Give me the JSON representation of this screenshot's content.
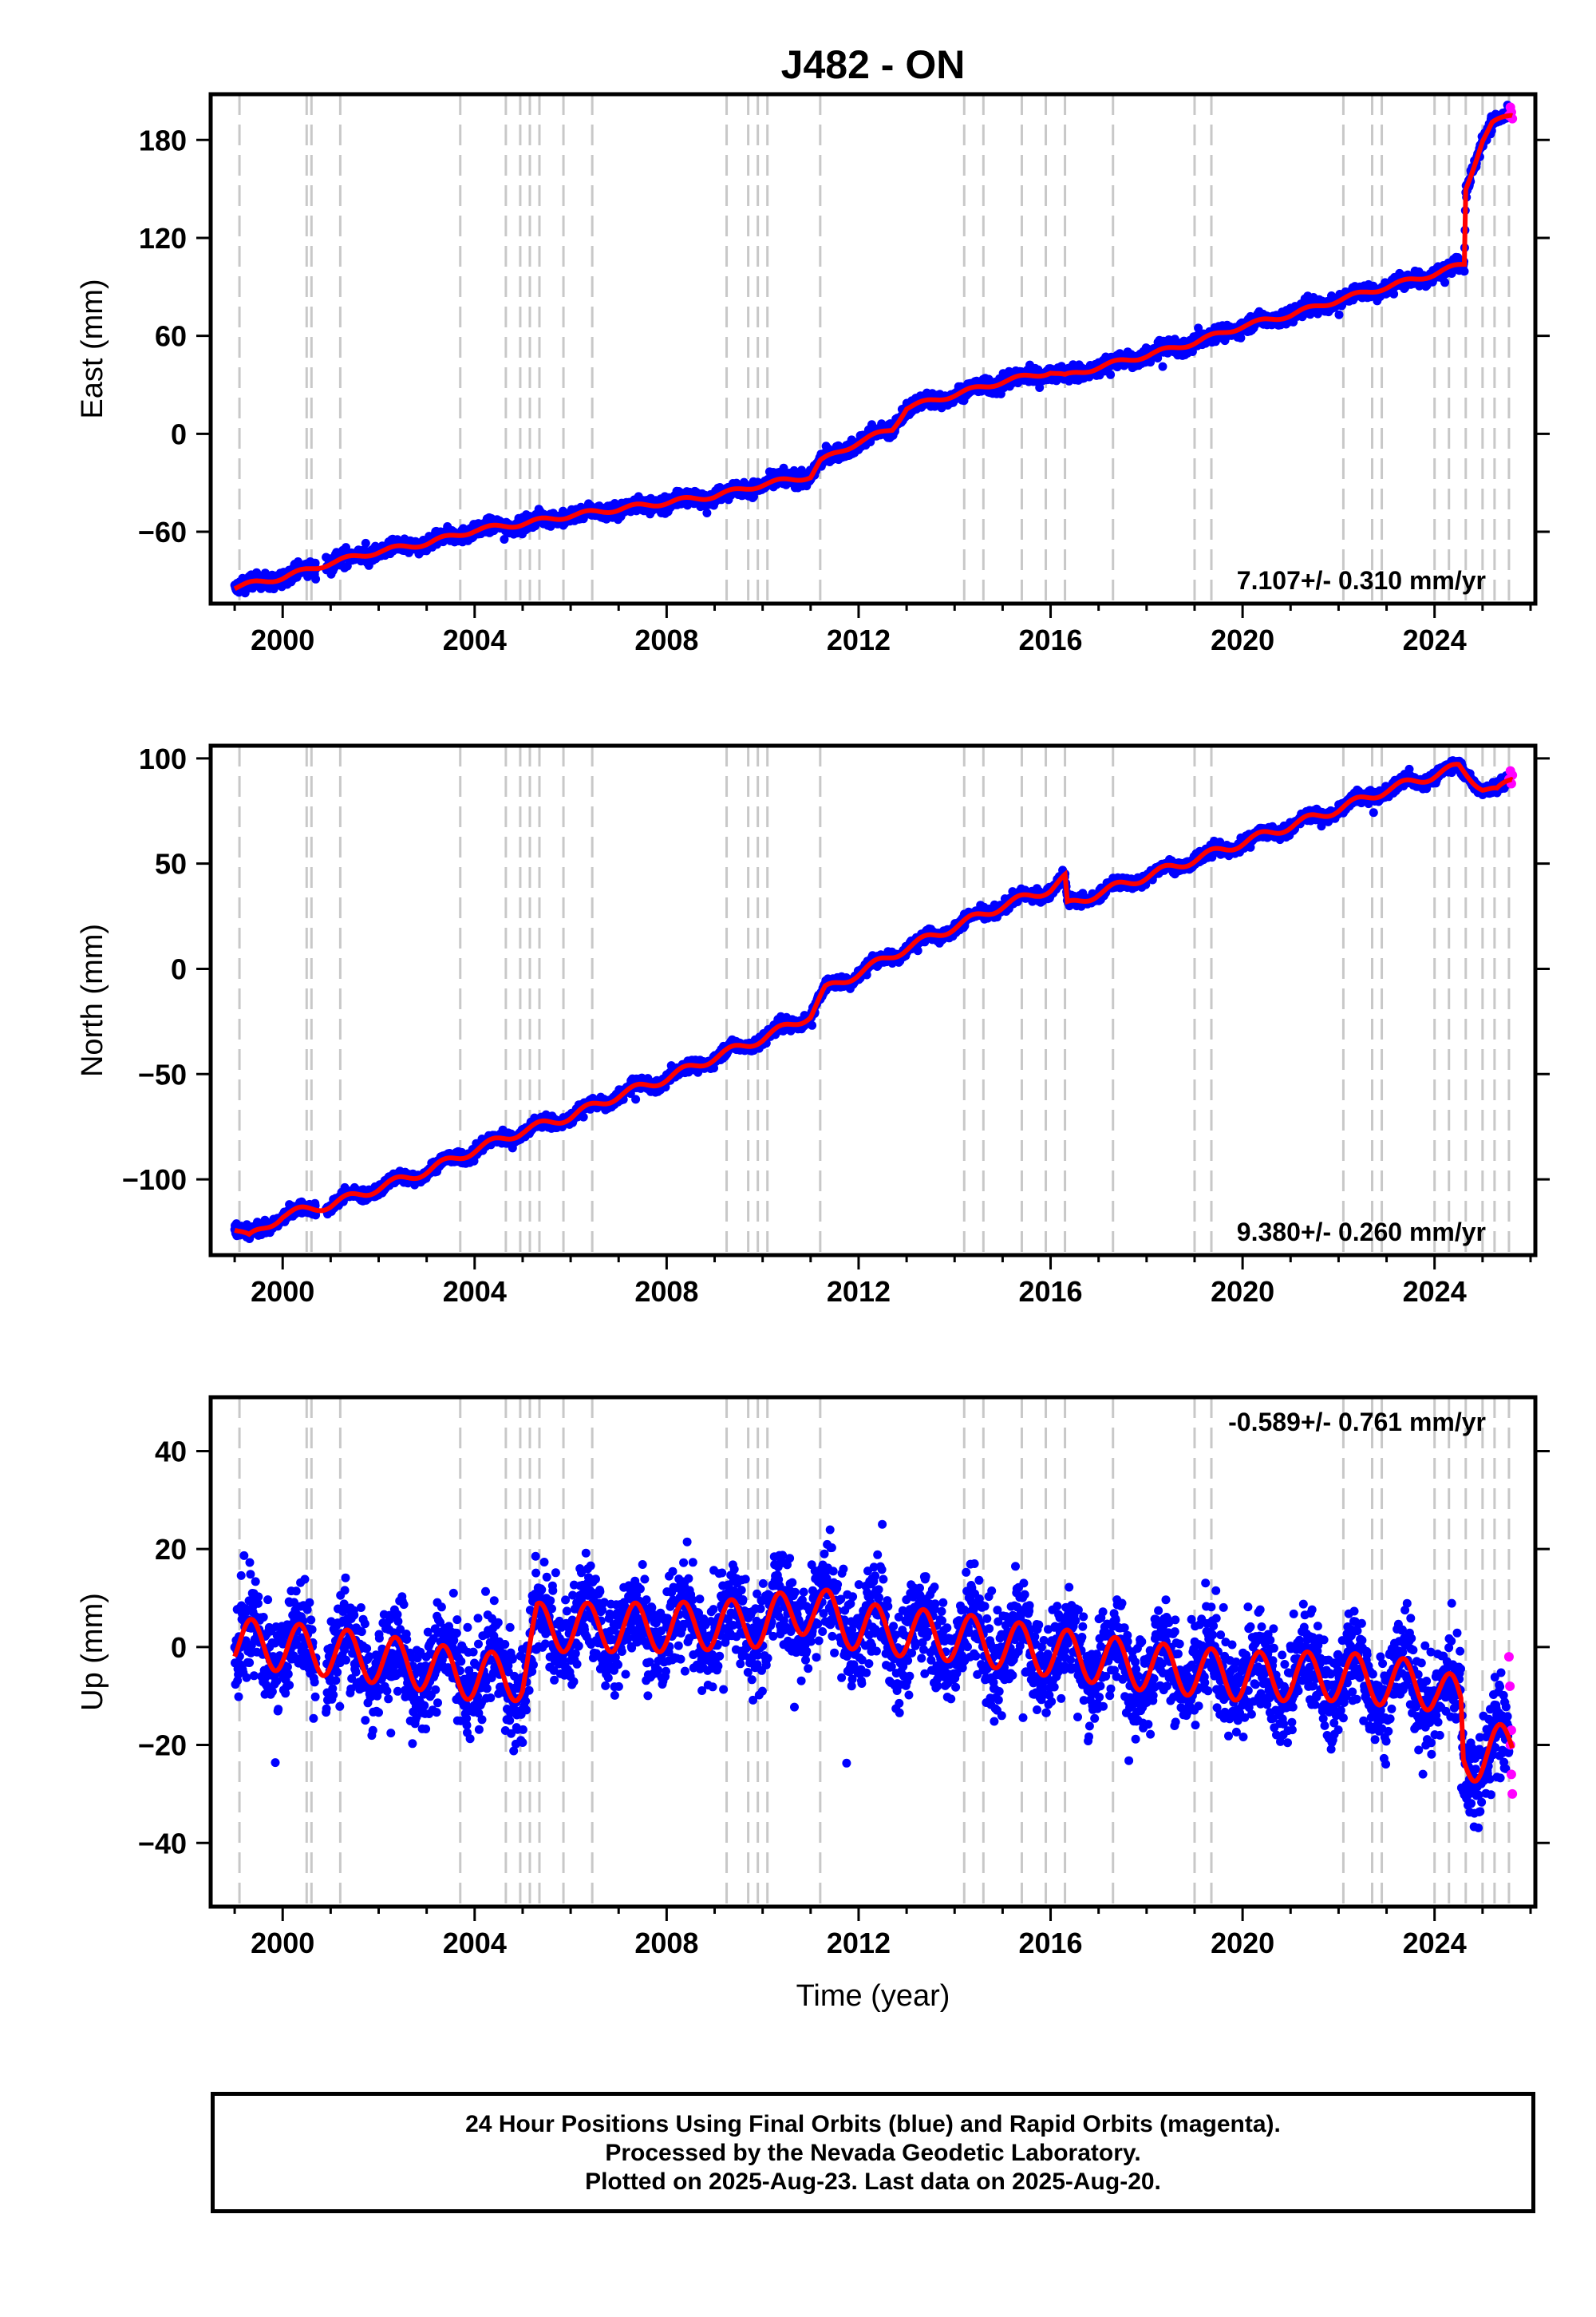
{
  "title": "J482 - ON",
  "colors": {
    "final_orbits": "#0000ff",
    "rapid_orbits": "#ff00ff",
    "model": "#ff0000",
    "equipment_change_lines": "#c8c8c8",
    "frame": "#000000"
  },
  "footer": {
    "line1": "24 Hour Positions Using Final Orbits (blue) and Rapid Orbits (magenta).",
    "line2": "Processed by the Nevada Geodetic Laboratory.",
    "line3": "Plotted on 2025-Aug-23. Last data on 2025-Aug-20."
  },
  "chart_data": [
    {
      "type": "scatter",
      "ylabel": "East (mm)",
      "xlabel": "",
      "xlim": [
        1998.5,
        2026.1
      ],
      "ylim": [
        -104,
        208
      ],
      "yticks": [
        -60,
        0,
        60,
        120,
        180
      ],
      "xticks": [
        2000,
        2004,
        2008,
        2012,
        2016,
        2020,
        2024
      ],
      "grid": false,
      "rate_label": "7.107+/- 0.310 mm/yr",
      "rate_position": "bottom-right",
      "trend_points": [
        [
          1999.0,
          -94
        ],
        [
          2000.0,
          -88
        ],
        [
          2001.0,
          -79
        ],
        [
          2002.0,
          -72
        ],
        [
          2003.0,
          -67
        ],
        [
          2004.0,
          -59
        ],
        [
          2005.0,
          -55
        ],
        [
          2006.0,
          -50
        ],
        [
          2007.0,
          -46
        ],
        [
          2008.0,
          -42
        ],
        [
          2009.0,
          -38
        ],
        [
          2010.0,
          -31
        ],
        [
          2011.0,
          -26
        ],
        [
          2011.2,
          -17
        ],
        [
          2012.0,
          -5
        ],
        [
          2012.7,
          3
        ],
        [
          2013.0,
          16
        ],
        [
          2014.0,
          24
        ],
        [
          2015.0,
          32
        ],
        [
          2016.0,
          38
        ],
        [
          2016.3,
          35
        ],
        [
          2017.0,
          41
        ],
        [
          2018.0,
          48
        ],
        [
          2019.0,
          56
        ],
        [
          2020.0,
          66
        ],
        [
          2021.0,
          73
        ],
        [
          2022.0,
          82
        ],
        [
          2023.0,
          90
        ],
        [
          2024.0,
          98
        ],
        [
          2024.62,
          104
        ],
        [
          2024.65,
          150
        ],
        [
          2025.0,
          180
        ],
        [
          2025.2,
          190
        ],
        [
          2025.6,
          195
        ]
      ],
      "scatter_spread": 4,
      "seasonal_amplitude": 1.5,
      "rapid_points": [
        [
          2025.55,
          195
        ],
        [
          2025.58,
          200
        ],
        [
          2025.6,
          197
        ],
        [
          2025.62,
          193
        ]
      ]
    },
    {
      "type": "scatter",
      "ylabel": "North (mm)",
      "xlabel": "",
      "xlim": [
        1998.5,
        2026.1
      ],
      "ylim": [
        -136,
        106
      ],
      "yticks": [
        -100,
        -50,
        0,
        50,
        100
      ],
      "xticks": [
        2000,
        2004,
        2008,
        2012,
        2016,
        2020,
        2024
      ],
      "grid": false,
      "rate_label": "9.380+/- 0.260 mm/yr",
      "rate_position": "bottom-right",
      "trend_points": [
        [
          1999.0,
          -123
        ],
        [
          1999.3,
          -128
        ],
        [
          2000.0,
          -117
        ],
        [
          2001.0,
          -112
        ],
        [
          2002.0,
          -104
        ],
        [
          2003.0,
          -96
        ],
        [
          2004.0,
          -86
        ],
        [
          2005.0,
          -77
        ],
        [
          2006.0,
          -70
        ],
        [
          2007.0,
          -60
        ],
        [
          2008.0,
          -52
        ],
        [
          2009.0,
          -42
        ],
        [
          2010.0,
          -33
        ],
        [
          2011.0,
          -22
        ],
        [
          2011.3,
          -10
        ],
        [
          2012.0,
          -2
        ],
        [
          2013.0,
          10
        ],
        [
          2014.0,
          20
        ],
        [
          2015.0,
          30
        ],
        [
          2016.0,
          38
        ],
        [
          2016.3,
          43
        ],
        [
          2016.35,
          30
        ],
        [
          2017.0,
          36
        ],
        [
          2018.0,
          44
        ],
        [
          2019.0,
          52
        ],
        [
          2020.0,
          60
        ],
        [
          2021.0,
          68
        ],
        [
          2022.0,
          76
        ],
        [
          2023.0,
          85
        ],
        [
          2024.0,
          92
        ],
        [
          2024.5,
          96
        ],
        [
          2025.0,
          86
        ],
        [
          2025.3,
          84
        ],
        [
          2025.6,
          90
        ]
      ],
      "scatter_spread": 2.5,
      "seasonal_amplitude": 2,
      "rapid_points": [
        [
          2025.55,
          90
        ],
        [
          2025.58,
          94
        ],
        [
          2025.6,
          88
        ],
        [
          2025.62,
          92
        ]
      ]
    },
    {
      "type": "scatter",
      "ylabel": "Up (mm)",
      "xlabel": "Time (year)",
      "xlim": [
        1998.5,
        2026.1
      ],
      "ylim": [
        -53,
        51
      ],
      "yticks": [
        -40,
        -20,
        0,
        20,
        40
      ],
      "xticks": [
        2000,
        2004,
        2008,
        2012,
        2016,
        2020,
        2024
      ],
      "grid": false,
      "rate_label": "-0.589+/- 0.761 mm/yr",
      "rate_position": "top-right",
      "trend_points": [
        [
          1999.0,
          1
        ],
        [
          2001.0,
          -1
        ],
        [
          2003.0,
          -4
        ],
        [
          2004.0,
          -6
        ],
        [
          2005.0,
          -6
        ],
        [
          2005.3,
          4
        ],
        [
          2006.0,
          4
        ],
        [
          2008.0,
          4
        ],
        [
          2010.0,
          5
        ],
        [
          2011.0,
          8
        ],
        [
          2012.0,
          4
        ],
        [
          2014.0,
          2
        ],
        [
          2016.0,
          -1
        ],
        [
          2018.0,
          -4
        ],
        [
          2020.0,
          -6
        ],
        [
          2022.0,
          -6
        ],
        [
          2024.0,
          -8
        ],
        [
          2024.55,
          -12
        ],
        [
          2024.6,
          -23
        ],
        [
          2025.0,
          -22
        ],
        [
          2025.6,
          -20
        ]
      ],
      "scatter_spread": 9,
      "seasonal_amplitude": 5,
      "rapid_points": [
        [
          2025.55,
          -2
        ],
        [
          2025.57,
          -8
        ],
        [
          2025.58,
          -20
        ],
        [
          2025.6,
          -26
        ],
        [
          2025.62,
          -30
        ],
        [
          2025.6,
          -17
        ]
      ]
    }
  ],
  "equipment_changes": [
    1999.1,
    2000.5,
    2000.6,
    2001.2,
    2003.7,
    2004.65,
    2004.95,
    2005.15,
    2005.35,
    2005.85,
    2006.45,
    2009.25,
    2009.7,
    2009.9,
    2010.1,
    2011.2,
    2014.2,
    2014.6,
    2015.4,
    2015.9,
    2016.3,
    2017.3,
    2019.0,
    2019.35,
    2022.1,
    2022.7,
    2022.9,
    2024.0,
    2024.3,
    2024.65,
    2025.0,
    2025.25,
    2025.55
  ]
}
